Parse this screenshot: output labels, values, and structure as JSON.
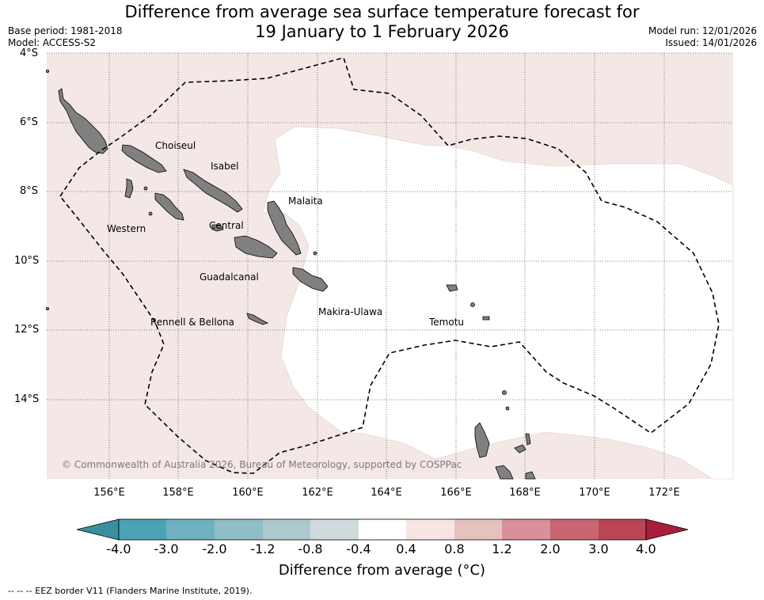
{
  "title": {
    "line1": "Difference from average sea surface temperature forecast for",
    "line2": "19 January to 1 February 2026"
  },
  "meta_left": {
    "base_period": "Base period: 1981-2018",
    "model": "Model: ACCESS-S2"
  },
  "meta_right": {
    "model_run": "Model run: 12/01/2026",
    "issued": "Issued: 14/01/2026"
  },
  "map": {
    "lat_labels": [
      "4°S",
      "6°S",
      "8°S",
      "10°S",
      "12°S",
      "14°S"
    ],
    "lon_labels": [
      "156°E",
      "158°E",
      "160°E",
      "162°E",
      "164°E",
      "166°E",
      "168°E",
      "170°E",
      "172°E"
    ],
    "regions": [
      "Choiseul",
      "Isabel",
      "Malaita",
      "Western",
      "Central",
      "Guadalcanal",
      "Makira-Ulawa",
      "Rennell & Bellona",
      "Temotu"
    ],
    "copyright": "© Commonwealth of Australia 2026, Bureau of Meteorology, supported by COSPPac",
    "colors": {
      "warm_anomaly_fill": "#f4e8e6",
      "neutral_fill": "#ffffff",
      "land": "#808080",
      "grid": "#555555",
      "eez_border": "#000000"
    }
  },
  "colorbar": {
    "ticks": [
      "-4.0",
      "-3.0",
      "-2.0",
      "-1.2",
      "-0.8",
      "-0.4",
      "0.4",
      "0.8",
      "1.2",
      "2.0",
      "3.0",
      "4.0"
    ],
    "colors": [
      "#3a8f9e",
      "#4aa3b4",
      "#6fb1c1",
      "#8fbdc8",
      "#aec9cd",
      "#cfdadc",
      "#ffffff",
      "#f5e6e4",
      "#e6c2be",
      "#d8909a",
      "#c96672",
      "#bb4555",
      "#aa1e3c"
    ],
    "label": "Difference from average (°C)"
  },
  "footnote": "--  --  -- EEZ border V11 (Flanders Marine Institute, 2019)."
}
